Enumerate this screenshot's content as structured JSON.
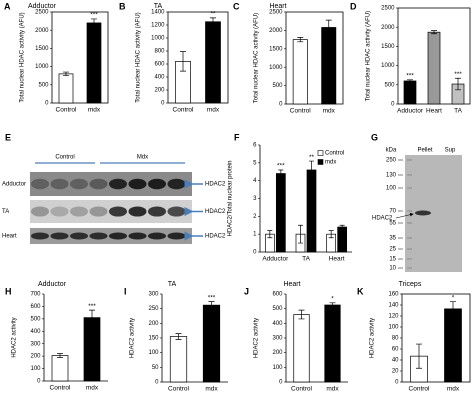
{
  "chart_data": [
    {
      "type": "bar",
      "panel": "A",
      "title": "Adductor",
      "ylabel": "Total nuclear HDAC activity (AFU)",
      "categories": [
        "Control",
        "mdx"
      ],
      "values": [
        800,
        2200
      ],
      "errors": [
        50,
        110
      ],
      "colors": [
        "#ffffff",
        "#000000"
      ],
      "annotations": [
        null,
        "***"
      ],
      "ylim": [
        0,
        2500
      ],
      "yticks": [
        0,
        500,
        1000,
        1500,
        2000,
        2500
      ],
      "frame": true
    },
    {
      "type": "bar",
      "panel": "B",
      "title": "TA",
      "ylabel": "Total nuclear HDAC activity (AFU)",
      "categories": [
        "Control",
        "mdx"
      ],
      "values": [
        640,
        1250
      ],
      "errors": [
        150,
        60
      ],
      "colors": [
        "#ffffff",
        "#000000"
      ],
      "annotations": [
        null,
        "**"
      ],
      "ylim": [
        0,
        1400
      ],
      "yticks": [
        0,
        200,
        400,
        600,
        800,
        1000,
        1200,
        1400
      ],
      "frame": true
    },
    {
      "type": "bar",
      "panel": "C",
      "title": "Heart",
      "ylabel": "Total nuclear HDAC activity (AFU)",
      "categories": [
        "Control",
        "mdx"
      ],
      "values": [
        1750,
        2080
      ],
      "errors": [
        60,
        200
      ],
      "colors": [
        "#ffffff",
        "#000000"
      ],
      "annotations": [
        null,
        null
      ],
      "ylim": [
        0,
        2500
      ],
      "yticks": [
        0,
        500,
        1000,
        1500,
        2000,
        2500
      ],
      "frame": true
    },
    {
      "type": "bar",
      "panel": "D",
      "ylabel": "Total nuclear HDAC activity (AFU)",
      "categories": [
        "Adductor",
        "Heart",
        "TA"
      ],
      "values": [
        600,
        1870,
        520
      ],
      "errors": [
        30,
        40,
        150
      ],
      "colors": [
        "#000000",
        "#999999",
        "#c0c0c0"
      ],
      "annotations": [
        "***",
        null,
        "***"
      ],
      "ylim": [
        0,
        2500
      ],
      "yticks": [
        0,
        500,
        1000,
        1500,
        2000,
        2500
      ],
      "frame": true
    },
    {
      "type": "grouped_bar",
      "panel": "F",
      "ylabel": "HDAC2/Total nuclear protein",
      "categories": [
        "Adductor",
        "TA",
        "Heart"
      ],
      "series": [
        {
          "name": "Control",
          "color": "#ffffff",
          "values": [
            1.0,
            1.0,
            1.0
          ],
          "errors": [
            0.2,
            0.5,
            0.2
          ],
          "annotations": [
            null,
            null,
            null
          ]
        },
        {
          "name": "mdx",
          "color": "#000000",
          "values": [
            4.4,
            4.6,
            1.4
          ],
          "errors": [
            0.2,
            0.5,
            0.1
          ],
          "annotations": [
            "***",
            "**",
            null
          ]
        }
      ],
      "ylim": [
        0,
        6
      ],
      "yticks": [
        0,
        1,
        2,
        3,
        4,
        5,
        6
      ],
      "legend": "upper right",
      "frame": false
    },
    {
      "type": "bar",
      "panel": "H",
      "title": "Adductor",
      "ylabel": "HDAC2 activity",
      "categories": [
        "Control",
        "mdx"
      ],
      "values": [
        205,
        510
      ],
      "errors": [
        15,
        60
      ],
      "colors": [
        "#ffffff",
        "#000000"
      ],
      "annotations": [
        null,
        "***"
      ],
      "ylim": [
        0,
        700
      ],
      "yticks": [
        0,
        100,
        200,
        300,
        400,
        500,
        600,
        700
      ],
      "frame": false
    },
    {
      "type": "bar",
      "panel": "I",
      "title": "TA",
      "ylabel": "HDAC2 activity",
      "categories": [
        "Control",
        "mdx"
      ],
      "values": [
        155,
        262
      ],
      "errors": [
        10,
        12
      ],
      "colors": [
        "#ffffff",
        "#000000"
      ],
      "annotations": [
        null,
        "***"
      ],
      "ylim": [
        0,
        300
      ],
      "yticks": [
        0,
        50,
        100,
        150,
        200,
        250,
        300
      ],
      "frame": false
    },
    {
      "type": "bar",
      "panel": "J",
      "title": "Heart",
      "ylabel": "HDAC2 activity",
      "categories": [
        "Control",
        "mdx"
      ],
      "values": [
        460,
        525
      ],
      "errors": [
        30,
        15
      ],
      "colors": [
        "#ffffff",
        "#000000"
      ],
      "annotations": [
        null,
        "*"
      ],
      "ylim": [
        0,
        600
      ],
      "yticks": [
        0,
        100,
        200,
        300,
        400,
        500,
        600
      ],
      "frame": false
    },
    {
      "type": "bar",
      "panel": "K",
      "title": "Triceps",
      "ylabel": "HDAC2 activity",
      "categories": [
        "Control",
        "mdx"
      ],
      "values": [
        47,
        133
      ],
      "errors": [
        22,
        13
      ],
      "colors": [
        "#ffffff",
        "#000000"
      ],
      "annotations": [
        null,
        "*"
      ],
      "ylim": [
        0,
        160
      ],
      "yticks": [
        0,
        20,
        40,
        60,
        80,
        100,
        120,
        140,
        160
      ],
      "frame": true
    }
  ],
  "blot": {
    "panel": "E",
    "groups": [
      "Control",
      "Mdx"
    ],
    "rows": [
      {
        "tissue": "Adductor",
        "protein": "HDAC2"
      },
      {
        "tissue": "TA",
        "protein": "HDAC2"
      },
      {
        "tissue": "Heart",
        "protein": "HDAC2"
      }
    ]
  },
  "gel": {
    "panel": "G",
    "unit": "kDa",
    "lanes": [
      "Pellet",
      "Sup"
    ],
    "markers": [
      250,
      130,
      100,
      70,
      55,
      35,
      25,
      15,
      10
    ],
    "band_label": "HDAC2"
  }
}
